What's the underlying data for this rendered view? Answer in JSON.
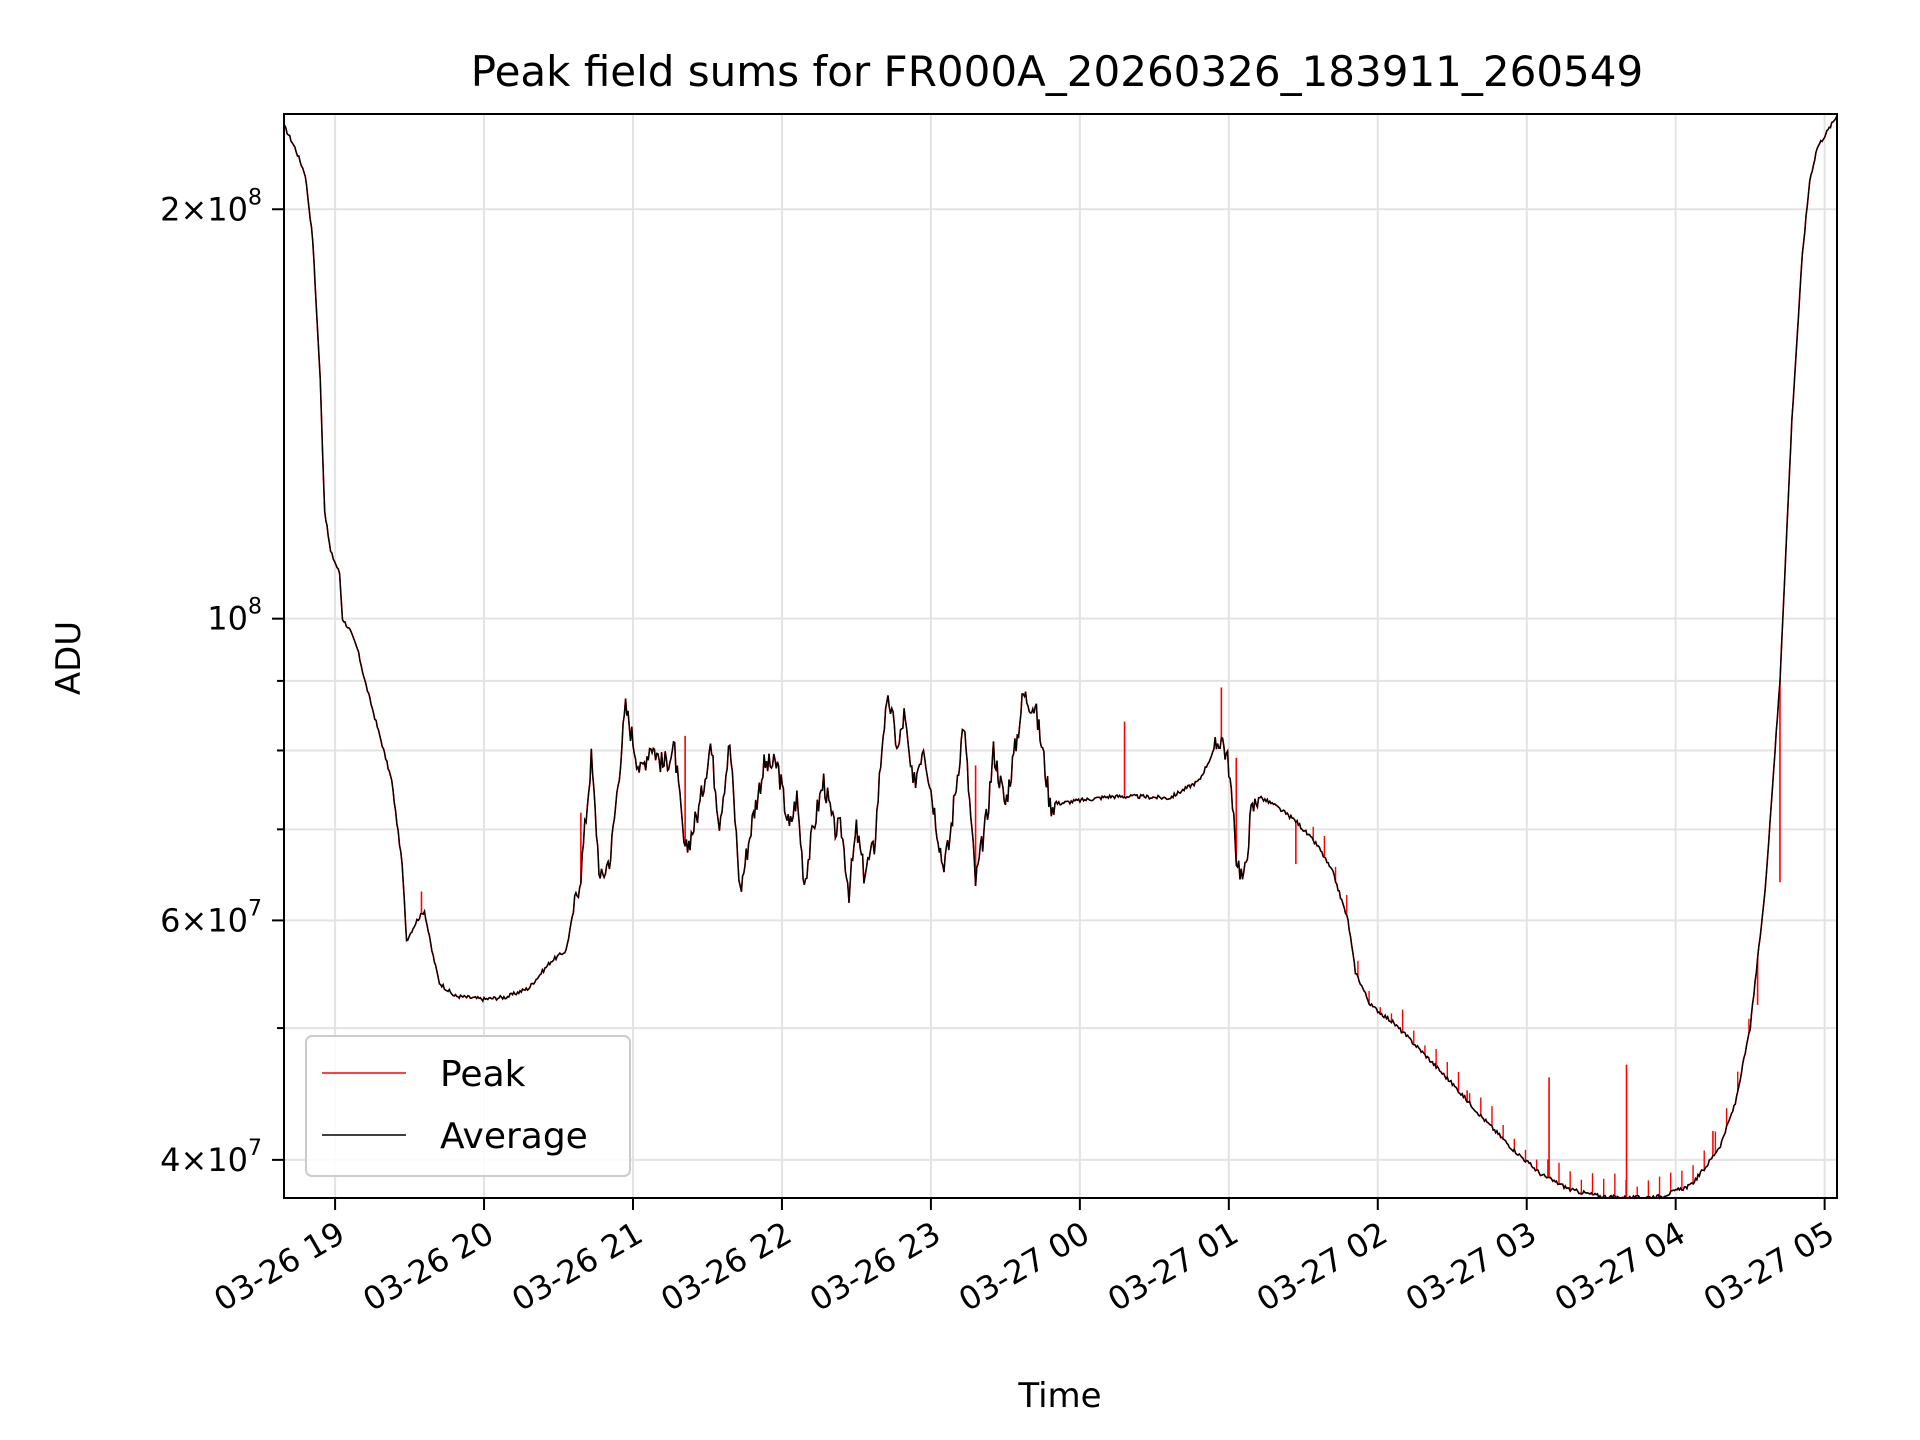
{
  "chart_data": {
    "type": "line",
    "title": "Peak field sums for FR000A_20260326_183911_260549",
    "xlabel": "Time",
    "ylabel": "ADU",
    "yscale": "log",
    "ylim": [
      37500000,
      235000000
    ],
    "xlim_hours": [
      18.657,
      29.083
    ],
    "grid": true,
    "legend_position": "lower-left",
    "x_ticks": [
      {
        "hour": 19,
        "label": "03-26 19"
      },
      {
        "hour": 20,
        "label": "03-26 20"
      },
      {
        "hour": 21,
        "label": "03-26 21"
      },
      {
        "hour": 22,
        "label": "03-26 22"
      },
      {
        "hour": 23,
        "label": "03-26 23"
      },
      {
        "hour": 24,
        "label": "03-27 00"
      },
      {
        "hour": 25,
        "label": "03-27 01"
      },
      {
        "hour": 26,
        "label": "03-27 02"
      },
      {
        "hour": 27,
        "label": "03-27 03"
      },
      {
        "hour": 28,
        "label": "03-27 04"
      },
      {
        "hour": 29,
        "label": "03-27 05"
      }
    ],
    "y_major_ticks": [
      {
        "value": 40000000,
        "mantissa": "4",
        "exp": "7"
      },
      {
        "value": 60000000,
        "mantissa": "6",
        "exp": "7"
      },
      {
        "value": 100000000,
        "mantissa": "",
        "exp": "8"
      },
      {
        "value": 200000000,
        "mantissa": "2",
        "exp": "8"
      }
    ],
    "y_minor_ticks": [
      50000000,
      70000000,
      80000000,
      90000000
    ],
    "series": [
      {
        "name": "Peak",
        "color": "#ff0000",
        "note": "tracks Average closely with small upward spikes",
        "spikes": [
          [
            19.58,
            63000000
          ],
          [
            20.65,
            72000000
          ],
          [
            21.35,
            82000000
          ],
          [
            23.3,
            78000000
          ],
          [
            24.3,
            84000000
          ],
          [
            24.95,
            89000000
          ],
          [
            25.05,
            79000000
          ],
          [
            25.45,
            66000000
          ],
          [
            26.6,
            45000000
          ],
          [
            27.15,
            46000000
          ],
          [
            27.67,
            47000000
          ],
          [
            28.25,
            42000000
          ],
          [
            28.55,
            52000000
          ],
          [
            28.7,
            64000000
          ]
        ]
      },
      {
        "name": "Average",
        "color": "#000000",
        "points": [
          [
            18.66,
            230000000
          ],
          [
            18.73,
            222000000
          ],
          [
            18.8,
            212000000
          ],
          [
            18.85,
            190000000
          ],
          [
            18.9,
            150000000
          ],
          [
            18.93,
            120000000
          ],
          [
            18.97,
            112000000
          ],
          [
            19.03,
            108000000
          ],
          [
            19.05,
            100000000
          ],
          [
            19.1,
            98000000
          ],
          [
            19.15,
            95000000
          ],
          [
            19.2,
            90000000
          ],
          [
            19.3,
            82000000
          ],
          [
            19.38,
            76000000
          ],
          [
            19.45,
            66000000
          ],
          [
            19.48,
            58000000
          ],
          [
            19.55,
            60000000
          ],
          [
            19.6,
            61000000
          ],
          [
            19.65,
            57000000
          ],
          [
            19.7,
            54000000
          ],
          [
            19.8,
            52800000
          ],
          [
            20.0,
            52500000
          ],
          [
            20.15,
            52700000
          ],
          [
            20.3,
            53500000
          ],
          [
            20.45,
            56000000
          ],
          [
            20.55,
            57000000
          ],
          [
            20.65,
            65000000
          ],
          [
            20.72,
            79000000
          ],
          [
            20.78,
            64000000
          ],
          [
            20.85,
            67000000
          ],
          [
            20.95,
            86000000
          ],
          [
            21.05,
            77000000
          ],
          [
            21.12,
            81000000
          ],
          [
            21.2,
            78000000
          ],
          [
            21.28,
            80000000
          ],
          [
            21.35,
            67000000
          ],
          [
            21.45,
            73000000
          ],
          [
            21.52,
            81000000
          ],
          [
            21.58,
            71000000
          ],
          [
            21.65,
            81000000
          ],
          [
            21.72,
            63000000
          ],
          [
            21.8,
            71000000
          ],
          [
            21.88,
            78000000
          ],
          [
            21.97,
            78000000
          ],
          [
            22.05,
            70000000
          ],
          [
            22.1,
            74000000
          ],
          [
            22.15,
            64000000
          ],
          [
            22.22,
            71000000
          ],
          [
            22.28,
            76000000
          ],
          [
            22.35,
            70000000
          ],
          [
            22.4,
            70000000
          ],
          [
            22.45,
            63000000
          ],
          [
            22.5,
            70000000
          ],
          [
            22.55,
            65000000
          ],
          [
            22.62,
            68000000
          ],
          [
            22.68,
            83000000
          ],
          [
            22.72,
            87000000
          ],
          [
            22.78,
            80000000
          ],
          [
            22.82,
            85000000
          ],
          [
            22.88,
            75000000
          ],
          [
            22.95,
            81000000
          ],
          [
            23.0,
            75000000
          ],
          [
            23.08,
            66000000
          ],
          [
            23.12,
            68000000
          ],
          [
            23.22,
            84000000
          ],
          [
            23.3,
            64000000
          ],
          [
            23.38,
            72000000
          ],
          [
            23.42,
            80000000
          ],
          [
            23.5,
            73000000
          ],
          [
            23.58,
            82000000
          ],
          [
            23.62,
            88000000
          ],
          [
            23.7,
            86000000
          ],
          [
            23.75,
            80000000
          ],
          [
            23.8,
            73000000
          ],
          [
            24.0,
            73500000
          ],
          [
            24.2,
            74000000
          ],
          [
            24.4,
            74000000
          ],
          [
            24.6,
            73800000
          ],
          [
            24.8,
            76000000
          ],
          [
            24.95,
            82000000
          ],
          [
            25.0,
            78000000
          ],
          [
            25.05,
            67000000
          ],
          [
            25.1,
            64000000
          ],
          [
            25.15,
            72000000
          ],
          [
            25.2,
            74000000
          ],
          [
            25.3,
            73000000
          ],
          [
            25.45,
            71000000
          ],
          [
            25.6,
            68000000
          ],
          [
            25.7,
            65000000
          ],
          [
            25.8,
            60000000
          ],
          [
            25.85,
            55000000
          ],
          [
            25.95,
            52000000
          ],
          [
            26.1,
            50500000
          ],
          [
            26.3,
            48000000
          ],
          [
            26.5,
            45500000
          ],
          [
            26.7,
            43000000
          ],
          [
            26.9,
            40800000
          ],
          [
            27.1,
            39000000
          ],
          [
            27.3,
            38000000
          ],
          [
            27.5,
            37600000
          ],
          [
            27.7,
            37500000
          ],
          [
            27.9,
            37600000
          ],
          [
            28.1,
            38300000
          ],
          [
            28.2,
            39500000
          ],
          [
            28.3,
            41000000
          ],
          [
            28.4,
            44000000
          ],
          [
            28.5,
            50000000
          ],
          [
            28.6,
            63000000
          ],
          [
            28.7,
            90000000
          ],
          [
            28.78,
            140000000
          ],
          [
            28.85,
            185000000
          ],
          [
            28.9,
            210000000
          ],
          [
            28.95,
            222000000
          ],
          [
            29.08,
            234000000
          ]
        ]
      }
    ]
  }
}
